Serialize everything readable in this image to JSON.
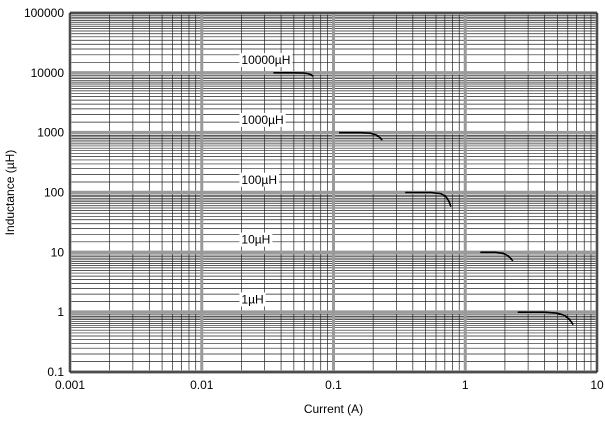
{
  "chart_data": {
    "type": "line",
    "xlabel": "Current (A)",
    "ylabel": "Inductance (µH)",
    "x_scale": "log",
    "y_scale": "log",
    "xlim": [
      0.001,
      10
    ],
    "ylim": [
      0.1,
      100000
    ],
    "grid": true,
    "x_ticks": [
      {
        "value": 0.001,
        "label": "0.001"
      },
      {
        "value": 0.01,
        "label": "0.01"
      },
      {
        "value": 0.1,
        "label": "0.1"
      },
      {
        "value": 1,
        "label": "1"
      },
      {
        "value": 10,
        "label": "10"
      }
    ],
    "y_ticks": [
      {
        "value": 0.1,
        "label": "0.1"
      },
      {
        "value": 1,
        "label": "1"
      },
      {
        "value": 10,
        "label": "10"
      },
      {
        "value": 100,
        "label": "100"
      },
      {
        "value": 1000,
        "label": "1000"
      },
      {
        "value": 10000,
        "label": "10000"
      },
      {
        "value": 100000,
        "label": "100000"
      }
    ],
    "series": [
      {
        "label": "10000µH",
        "label_at": [
          0.02,
          14000
        ],
        "x": [
          0.035,
          0.05,
          0.06,
          0.065,
          0.068,
          0.07
        ],
        "y": [
          10000,
          10000,
          9900,
          9600,
          9200,
          8800
        ]
      },
      {
        "label": "1000µH",
        "label_at": [
          0.02,
          1400
        ],
        "x": [
          0.11,
          0.16,
          0.19,
          0.21,
          0.225,
          0.235
        ],
        "y": [
          1000,
          1000,
          980,
          920,
          830,
          740
        ]
      },
      {
        "label": "100µH",
        "label_at": [
          0.02,
          140
        ],
        "x": [
          0.35,
          0.55,
          0.65,
          0.71,
          0.75,
          0.78
        ],
        "y": [
          100,
          100,
          96,
          86,
          72,
          58
        ]
      },
      {
        "label": "10µH",
        "label_at": [
          0.02,
          14
        ],
        "x": [
          1.3,
          1.7,
          1.95,
          2.1,
          2.2,
          2.3
        ],
        "y": [
          10,
          10,
          9.6,
          8.8,
          8.0,
          7.2
        ]
      },
      {
        "label": "1µH",
        "label_at": [
          0.02,
          1.4
        ],
        "x": [
          2.5,
          4.0,
          5.0,
          5.7,
          6.2,
          6.6
        ],
        "y": [
          1,
          1,
          0.96,
          0.88,
          0.75,
          0.62
        ]
      }
    ]
  }
}
